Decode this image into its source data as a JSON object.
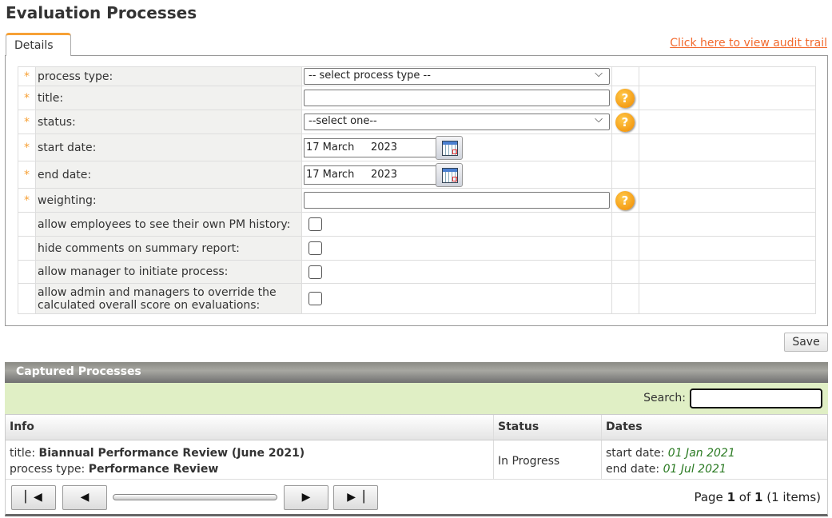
{
  "page": {
    "title": "Evaluation Processes"
  },
  "tabs": [
    {
      "label": "Details",
      "active": true
    }
  ],
  "audit_link": "Click here to view audit trail",
  "form": {
    "required_marker": "*",
    "process_type": {
      "label": "process type:",
      "value": "-- select process type --"
    },
    "title": {
      "label": "title:",
      "value": ""
    },
    "status": {
      "label": "status:",
      "value": "--select one--"
    },
    "start_date": {
      "label": "start date:",
      "value": "17 March     2023"
    },
    "end_date": {
      "label": "end date:",
      "value": "17 March     2023"
    },
    "weighting": {
      "label": "weighting:",
      "value": ""
    },
    "checkboxes": [
      {
        "label": "allow employees to see their own PM history:",
        "checked": false
      },
      {
        "label": "hide comments on summary report:",
        "checked": false
      },
      {
        "label": "allow manager to initiate process:",
        "checked": false
      },
      {
        "label": "allow admin and managers to override the calculated overall score on evaluations:",
        "checked": false
      }
    ],
    "help_icon": "?"
  },
  "save_label": "Save",
  "captured": {
    "title": "Captured Processes",
    "search_label": "Search:",
    "search_value": "",
    "columns": [
      "Info",
      "Status",
      "Dates"
    ],
    "rows": [
      {
        "title_label": "title:",
        "title": "Biannual Performance Review (June 2021)",
        "type_label": "process type:",
        "type": "Performance Review",
        "status": "In Progress",
        "start_label": "start date:",
        "start": "01 Jan 2021",
        "end_label": "end date:",
        "end": "01 Jul 2021"
      }
    ],
    "pager": {
      "page_word": "Page",
      "page": "1",
      "of_word": "of",
      "total": "1",
      "items": "(1 items)"
    }
  },
  "colors": {
    "accent": "#f7a136",
    "link": "#f26a2e",
    "search_bar": "#e0efc5",
    "date_text": "#2a7a22"
  }
}
